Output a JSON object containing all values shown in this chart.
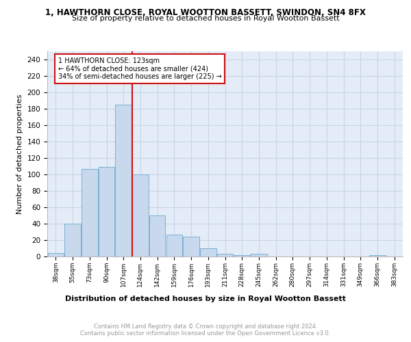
{
  "title1": "1, HAWTHORN CLOSE, ROYAL WOOTTON BASSETT, SWINDON, SN4 8FX",
  "title2": "Size of property relative to detached houses in Royal Wootton Bassett",
  "xlabel": "Distribution of detached houses by size in Royal Wootton Bassett",
  "ylabel": "Number of detached properties",
  "footer1": "Contains HM Land Registry data © Crown copyright and database right 2024.",
  "footer2": "Contains public sector information licensed under the Open Government Licence v3.0.",
  "categories": [
    "38sqm",
    "55sqm",
    "73sqm",
    "90sqm",
    "107sqm",
    "124sqm",
    "142sqm",
    "159sqm",
    "176sqm",
    "193sqm",
    "211sqm",
    "228sqm",
    "245sqm",
    "262sqm",
    "280sqm",
    "297sqm",
    "314sqm",
    "331sqm",
    "349sqm",
    "366sqm",
    "383sqm"
  ],
  "values": [
    4,
    40,
    107,
    109,
    185,
    100,
    50,
    27,
    24,
    10,
    3,
    2,
    3,
    0,
    0,
    0,
    0,
    0,
    0,
    2,
    0
  ],
  "bar_color": "#c9d9ed",
  "bar_edge_color": "#7ab0d4",
  "annotation_line1": "1 HAWTHORN CLOSE: 123sqm",
  "annotation_line2": "← 64% of detached houses are smaller (424)",
  "annotation_line3": "34% of semi-detached houses are larger (225) →",
  "vline_color": "#cc1111",
  "annotation_box_edge_color": "#cc1111",
  "ylim": [
    0,
    250
  ],
  "yticks": [
    0,
    20,
    40,
    60,
    80,
    100,
    120,
    140,
    160,
    180,
    200,
    220,
    240
  ],
  "grid_color": "#c8d4e8",
  "background_color": "#e4ecf7"
}
